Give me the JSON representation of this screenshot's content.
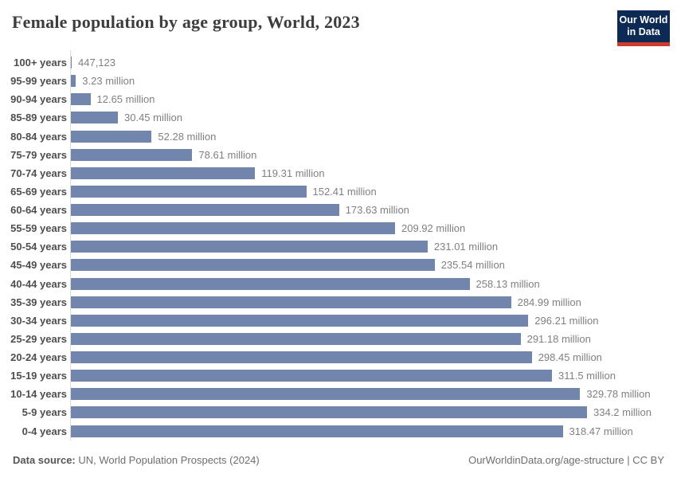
{
  "header": {
    "title": "Female population by age group, World, 2023",
    "logo": {
      "line1": "Our World",
      "line2": "in Data"
    }
  },
  "chart_data": {
    "type": "bar",
    "orientation": "horizontal",
    "title": "Female population by age group, World, 2023",
    "unit": "million persons",
    "bar_color": "#7286ad",
    "axis_color": "#dcdcdc",
    "max_value": 334.2,
    "categories": [
      "100+ years",
      "95-99 years",
      "90-94 years",
      "85-89 years",
      "80-84 years",
      "75-79 years",
      "70-74 years",
      "65-69 years",
      "60-64 years",
      "55-59 years",
      "50-54 years",
      "45-49 years",
      "40-44 years",
      "35-39 years",
      "30-34 years",
      "25-29 years",
      "20-24 years",
      "15-19 years",
      "10-14 years",
      "5-9 years",
      "0-4 years"
    ],
    "values": [
      0.447123,
      3.23,
      12.65,
      30.45,
      52.28,
      78.61,
      119.31,
      152.41,
      173.63,
      209.92,
      231.01,
      235.54,
      258.13,
      284.99,
      296.21,
      291.18,
      298.45,
      311.5,
      329.78,
      334.2,
      318.47
    ],
    "value_labels": [
      "447,123",
      "3.23 million",
      "12.65 million",
      "30.45 million",
      "52.28 million",
      "78.61 million",
      "119.31 million",
      "152.41 million",
      "173.63 million",
      "209.92 million",
      "231.01 million",
      "235.54 million",
      "258.13 million",
      "284.99 million",
      "296.21 million",
      "291.18 million",
      "298.45 million",
      "311.5 million",
      "329.78 million",
      "334.2 million",
      "318.47 million"
    ]
  },
  "footer": {
    "source_label": "Data source:",
    "source_text": " UN, World Population Prospects (2024)",
    "link": "OurWorldinData.org/age-structure | CC BY"
  },
  "colors": {
    "title": "#3d3d3d",
    "category_label": "#4e4e4e",
    "value_label": "#808080",
    "logo_navy": "#0c2a53",
    "logo_red": "#cc3b2f"
  }
}
